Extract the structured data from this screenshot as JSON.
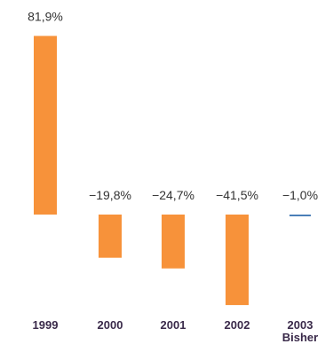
{
  "chart_data": {
    "type": "bar",
    "categories": [
      "1999",
      "2000",
      "2001",
      "2002",
      "2003"
    ],
    "category_sublabels": [
      "",
      "",
      "",
      "",
      "Bisher"
    ],
    "values": [
      81.9,
      -19.8,
      -24.7,
      -41.5,
      -1.0
    ],
    "value_labels": [
      "81,9%",
      "−19,8%",
      "−24,7%",
      "−41,5%",
      "−1,0%"
    ],
    "ylim": [
      -45,
      85
    ],
    "grid": false,
    "colors": {
      "bar": "#f7923a",
      "small_bar": "#4a7fb8",
      "tick_text": "#3a2a4a",
      "value_text": "#333333"
    }
  }
}
